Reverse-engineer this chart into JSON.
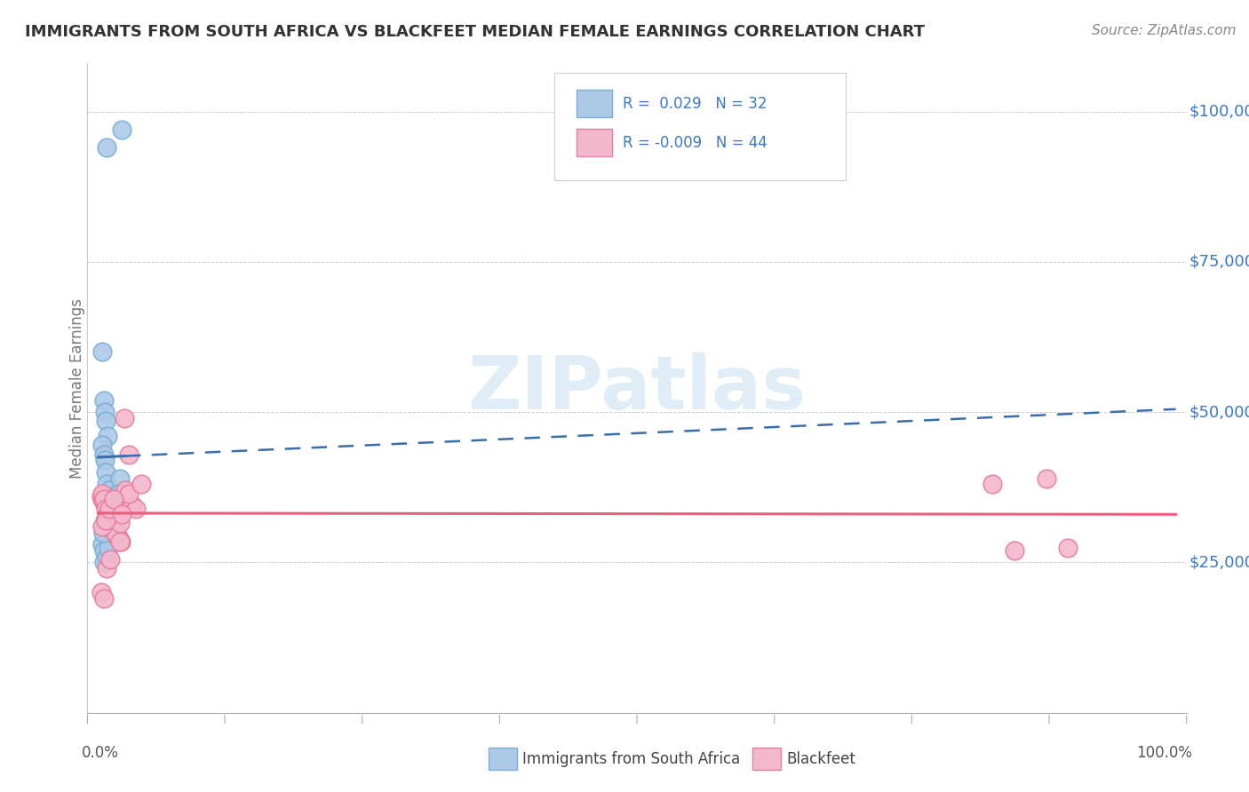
{
  "title": "IMMIGRANTS FROM SOUTH AFRICA VS BLACKFEET MEDIAN FEMALE EARNINGS CORRELATION CHART",
  "source": "Source: ZipAtlas.com",
  "ylabel": "Median Female Earnings",
  "ytick_labels": [
    "$25,000",
    "$50,000",
    "$75,000",
    "$100,000"
  ],
  "ytick_values": [
    25000,
    50000,
    75000,
    100000
  ],
  "legend_label1": "Immigrants from South Africa",
  "legend_label2": "Blackfeet",
  "blue_scatter_color": "#adc9e8",
  "blue_edge_color": "#7aafd4",
  "pink_scatter_color": "#f4b8cc",
  "pink_edge_color": "#e87ea0",
  "blue_line_color": "#3a6eab",
  "pink_line_color": "#e8607e",
  "text_blue": "#3a78c9",
  "watermark_color": "#cce0f0",
  "grid_color": "#cccccc",
  "title_color": "#333333",
  "source_color": "#888888",
  "ylabel_color": "#777777",
  "blue_x": [
    0.8,
    2.2,
    0.4,
    0.5,
    0.6,
    0.7,
    0.9,
    0.4,
    0.5,
    0.6,
    0.7,
    0.8,
    1.0,
    1.3,
    1.6,
    2.0,
    1.2,
    1.5,
    1.8,
    0.35,
    0.5,
    0.7,
    0.9,
    1.1,
    1.4,
    1.9,
    0.55,
    0.75,
    0.95,
    1.15,
    0.45,
    0.65
  ],
  "blue_y": [
    94000,
    97000,
    60000,
    52000,
    50000,
    48500,
    46000,
    44500,
    43000,
    42000,
    40000,
    38000,
    37000,
    36000,
    35500,
    39000,
    33000,
    30000,
    28500,
    28000,
    27000,
    32000,
    33500,
    35000,
    36000,
    36500,
    25000,
    26000,
    27500,
    34500,
    30000,
    32000
  ],
  "pink_x": [
    0.3,
    0.4,
    0.5,
    0.6,
    0.7,
    0.8,
    0.9,
    1.0,
    1.2,
    1.3,
    1.5,
    1.7,
    1.9,
    2.1,
    2.4,
    2.8,
    3.2,
    0.4,
    0.55,
    0.7,
    0.85,
    1.0,
    1.2,
    1.6,
    2.0,
    2.5,
    3.5,
    0.3,
    0.5,
    0.8,
    1.1,
    1.5,
    2.0,
    2.8,
    4.0,
    0.4,
    0.7,
    1.0,
    1.4,
    2.2,
    83,
    88,
    85,
    90
  ],
  "pink_y": [
    36000,
    35500,
    35000,
    35000,
    34500,
    34000,
    33500,
    33000,
    32000,
    31500,
    30500,
    29500,
    29000,
    28500,
    49000,
    43000,
    34500,
    36500,
    35500,
    34000,
    33000,
    32000,
    30500,
    30000,
    28500,
    37000,
    34000,
    20000,
    19000,
    24000,
    25500,
    33500,
    31500,
    36500,
    38000,
    31000,
    32000,
    34000,
    35500,
    33000,
    38000,
    39000,
    27000,
    27500
  ],
  "ylim": [
    0,
    108000
  ],
  "xlim": [
    -1,
    101
  ],
  "blue_trend_x0": 0,
  "blue_trend_x1": 100,
  "blue_trend_y0": 42500,
  "blue_trend_y1": 50500,
  "blue_solid_x1": 2.5,
  "blue_solid_y1": 42700,
  "pink_trend_x0": 0,
  "pink_trend_x1": 100,
  "pink_trend_y0": 33200,
  "pink_trend_y1": 33000
}
